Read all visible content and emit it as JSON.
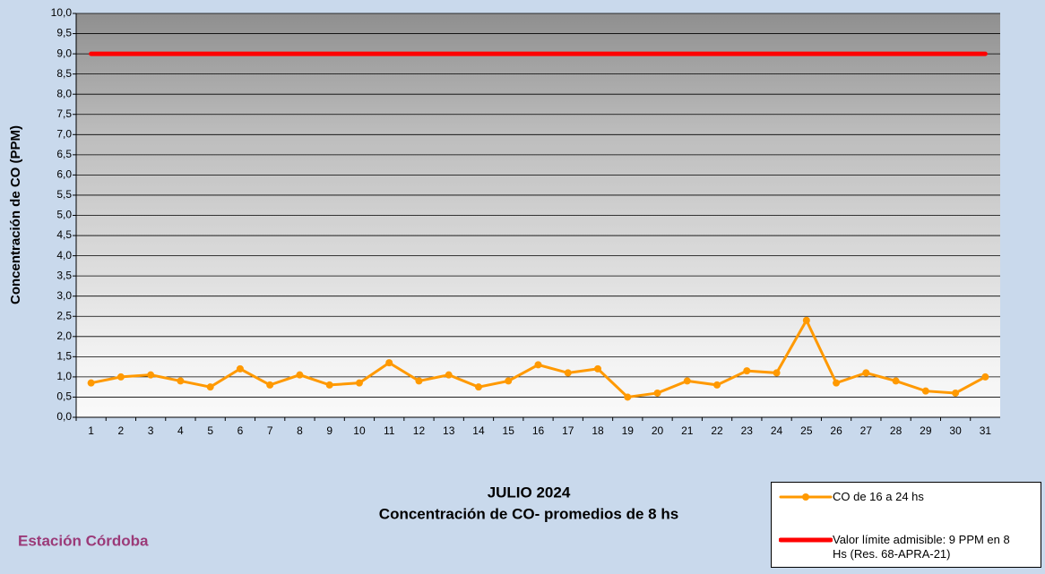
{
  "chart_data": {
    "type": "line",
    "title": "JULIO 2024",
    "subtitle": "Concentración de CO- promedios de 8 hs",
    "annotation": "Estación Córdoba",
    "y_label": "Concentración de CO (PPM)",
    "categories": [
      "1",
      "2",
      "3",
      "4",
      "5",
      "6",
      "7",
      "8",
      "9",
      "10",
      "11",
      "12",
      "13",
      "14",
      "15",
      "16",
      "17",
      "18",
      "19",
      "20",
      "21",
      "22",
      "23",
      "24",
      "25",
      "26",
      "27",
      "28",
      "29",
      "30",
      "31"
    ],
    "series": [
      {
        "name": "CO de 16 a 24 hs",
        "color": "#ff9900",
        "marker": "circle",
        "values": [
          0.85,
          1.0,
          1.05,
          0.9,
          0.75,
          1.2,
          0.8,
          1.05,
          0.8,
          0.85,
          1.35,
          0.9,
          1.05,
          0.75,
          0.9,
          1.3,
          1.1,
          1.2,
          0.5,
          0.6,
          0.9,
          0.8,
          1.15,
          1.1,
          2.4,
          0.85,
          1.1,
          0.9,
          0.65,
          0.6,
          1.0
        ]
      },
      {
        "name": "Valor límite admisible: 9 PPM en 8 Hs (Res. 68-APRA-21)",
        "color": "#ff0000",
        "marker": "none",
        "values": [
          9,
          9,
          9,
          9,
          9,
          9,
          9,
          9,
          9,
          9,
          9,
          9,
          9,
          9,
          9,
          9,
          9,
          9,
          9,
          9,
          9,
          9,
          9,
          9,
          9,
          9,
          9,
          9,
          9,
          9,
          9
        ]
      }
    ],
    "ylim": [
      0,
      10
    ],
    "yticks": [
      {
        "value": 0,
        "label": "0,0"
      },
      {
        "value": 0.5,
        "label": "0,5"
      },
      {
        "value": 1,
        "label": "1,0"
      },
      {
        "value": 1.5,
        "label": "1,5"
      },
      {
        "value": 2,
        "label": "2,0"
      },
      {
        "value": 2.5,
        "label": "2,5"
      },
      {
        "value": 3,
        "label": "3,0"
      },
      {
        "value": 3.5,
        "label": "3,5"
      },
      {
        "value": 4,
        "label": "4,0"
      },
      {
        "value": 4.5,
        "label": "4,5"
      },
      {
        "value": 5,
        "label": "5,0"
      },
      {
        "value": 5.5,
        "label": "5,5"
      },
      {
        "value": 6,
        "label": "6,0"
      },
      {
        "value": 6.5,
        "label": "6,5"
      },
      {
        "value": 7,
        "label": "7,0"
      },
      {
        "value": 7.5,
        "label": "7,5"
      },
      {
        "value": 8,
        "label": "8,0"
      },
      {
        "value": 8.5,
        "label": "8,5"
      },
      {
        "value": 9,
        "label": "9,0"
      },
      {
        "value": 9.5,
        "label": "9,5"
      },
      {
        "value": 10,
        "label": "10,0"
      }
    ],
    "grid": true
  }
}
